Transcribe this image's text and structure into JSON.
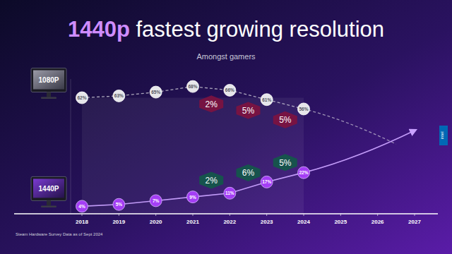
{
  "chart_data": {
    "type": "line",
    "title": "1440p fastest growing resolution",
    "subtitle": "Amongst gamers",
    "source": "Steam Hardware Survey Data as of Sept 2024",
    "logo": "intel",
    "categories": [
      "2018",
      "2019",
      "2020",
      "2021",
      "2022",
      "2023",
      "2024",
      "2025",
      "2026",
      "2027"
    ],
    "series": [
      {
        "name": "1080P",
        "color": "#e6e6ea",
        "line_style": "dashed",
        "marker": "circle",
        "values": [
          62,
          63,
          65,
          68,
          66,
          61,
          56,
          null,
          null,
          null
        ],
        "value_labels": [
          "62%",
          "63%",
          "65%",
          "68%",
          "66%",
          "61%",
          "56%",
          null,
          null,
          null
        ]
      },
      {
        "name": "1440P",
        "color": "#a43ef5",
        "line_style": "solid",
        "marker": "circle",
        "values": [
          4,
          5,
          7,
          9,
          11,
          17,
          22,
          null,
          null,
          null
        ],
        "value_labels": [
          "4%",
          "5%",
          "7%",
          "9%",
          "11%",
          "17%",
          "22%",
          null,
          null,
          null
        ]
      }
    ],
    "annotations": [
      {
        "text": "2%",
        "series": "1080P",
        "from": "2021",
        "to": "2022"
      },
      {
        "text": "5%",
        "series": "1080P",
        "from": "2022",
        "to": "2023"
      },
      {
        "text": "5%",
        "series": "1080P",
        "from": "2023",
        "to": "2024"
      },
      {
        "text": "2%",
        "series": "1440P",
        "from": "2021",
        "to": "2022"
      },
      {
        "text": "6%",
        "series": "1440P",
        "from": "2022",
        "to": "2023"
      },
      {
        "text": "5%",
        "series": "1440P",
        "from": "2023",
        "to": "2024"
      }
    ],
    "ylim": [
      0,
      72
    ],
    "tick_labels": "x",
    "data_labels": true,
    "grid": false
  }
}
